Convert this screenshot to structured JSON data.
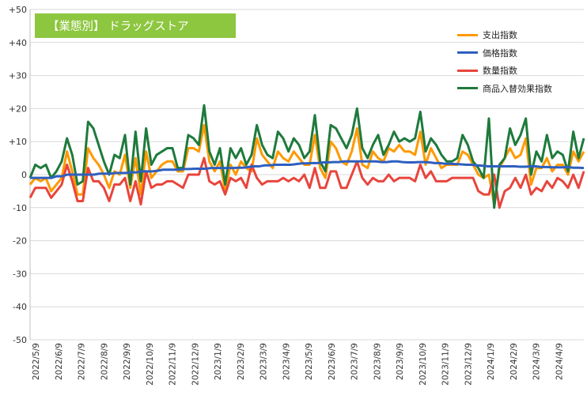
{
  "chart_data": {
    "type": "line",
    "title": "【業態別】 ドラッグストア",
    "ylim": [
      -50,
      50
    ],
    "yticks": [
      "+50",
      "+40",
      "+30",
      "+20",
      "+10",
      "0",
      "-10",
      "-20",
      "-30",
      "-40",
      "-50"
    ],
    "ytick_values": [
      50,
      40,
      30,
      20,
      10,
      0,
      -10,
      -20,
      -30,
      -40,
      -50
    ],
    "xtick_labels": [
      "2022/5/9",
      "2022/6/9",
      "2022/7/9",
      "2022/8/9",
      "2022/9/9",
      "2022/10/9",
      "2022/11/9",
      "2022/12/9",
      "2023/1/9",
      "2023/2/9",
      "2023/3/9",
      "2023/4/9",
      "2023/5/9",
      "2023/6/9",
      "2023/7/9",
      "2023/8/9",
      "2023/9/9",
      "2023/10/9",
      "2023/11/9",
      "2023/12/9",
      "2024/1/9",
      "2024/2/9",
      "2024/3/9",
      "2024/4/9"
    ],
    "grid": true,
    "legend_position": "top-right",
    "series": [
      {
        "name": "支出指数",
        "color": "#ff9900",
        "values": [
          -3,
          -1,
          -2,
          -1,
          -5,
          -3,
          -1,
          7,
          1,
          -6,
          -6,
          8,
          5,
          3,
          0,
          -4,
          1,
          0,
          6,
          -4,
          5,
          -6,
          7,
          -1,
          1,
          3,
          4,
          4,
          1,
          1,
          8,
          8,
          7,
          15,
          4,
          1,
          4,
          -5,
          3,
          0,
          4,
          2,
          1,
          11,
          6,
          4,
          2,
          7,
          5,
          4,
          7,
          5,
          3,
          3,
          12,
          2,
          -1,
          10,
          8,
          4,
          3,
          7,
          14,
          3,
          2,
          7,
          5,
          4,
          8,
          7,
          9,
          7,
          7,
          6,
          13,
          3,
          8,
          5,
          2,
          3,
          3,
          3,
          7,
          6,
          3,
          0,
          -1,
          0,
          -9,
          2,
          5,
          8,
          5,
          6,
          11,
          -3,
          2,
          2,
          5,
          1,
          3,
          3,
          0,
          7,
          4,
          7
        ]
      },
      {
        "name": "価格指数",
        "color": "#2e5fbf",
        "values": [
          -1,
          -1,
          -1,
          -1,
          -1,
          -0.5,
          -0.5,
          0,
          0,
          0,
          0,
          0,
          0,
          0.3,
          0.3,
          0.3,
          0.5,
          0.5,
          0.5,
          0.7,
          0.7,
          1,
          1,
          1,
          1.2,
          1.5,
          1.5,
          1.5,
          1.5,
          1.7,
          1.7,
          1.8,
          1.8,
          1.8,
          2,
          2,
          2,
          2,
          2,
          2.1,
          2.1,
          2.3,
          2.5,
          2.5,
          2.8,
          2.8,
          3,
          3,
          3,
          3,
          3.2,
          3.4,
          3.4,
          3.5,
          3.5,
          3.7,
          3.7,
          3.8,
          3.8,
          4,
          4,
          4,
          4,
          4,
          4,
          4,
          3.8,
          3.8,
          4,
          4,
          3.8,
          3.7,
          3.7,
          3.8,
          3.8,
          3.7,
          3.5,
          3.5,
          3.3,
          3.3,
          3.2,
          3.1,
          3,
          3,
          2.8,
          2.7,
          2.5,
          2.5,
          2.5,
          2.5,
          2.5,
          2.5,
          2.4,
          2.4,
          2.5,
          2.5,
          2.3,
          2.3,
          2.2,
          2.2,
          2.2,
          2.3,
          2.1,
          2.1,
          2
        ]
      },
      {
        "name": "数量指数",
        "color": "#e8453c",
        "values": [
          -7,
          -4,
          -4,
          -4,
          -7,
          -5,
          -3,
          3,
          -2,
          -8,
          -8,
          2,
          -2,
          -2,
          -4,
          -8,
          -3,
          -3,
          -1,
          -8,
          -2,
          -9,
          1,
          -4,
          -3,
          -3,
          -2,
          -2,
          -3,
          -4,
          0,
          0,
          0,
          5,
          -2,
          -3,
          -2,
          -6,
          -1,
          -2,
          -1,
          -4,
          3,
          -1,
          -3,
          -2,
          -2,
          -2,
          -1,
          -2,
          -1,
          -2,
          0,
          -4,
          2,
          -4,
          -4,
          1,
          1,
          -4,
          -4,
          0,
          4,
          -1,
          -3,
          -1,
          -2,
          -2,
          0,
          -2,
          -1,
          -1,
          -1,
          -2,
          3,
          -1,
          1,
          -2,
          -2,
          -2,
          -1,
          -1,
          -1,
          -1,
          -1,
          -5,
          -6,
          -6,
          0,
          -10,
          -5,
          -4,
          -1,
          -4,
          0,
          -6,
          -4,
          -5,
          -2,
          -4,
          -1,
          -2,
          -4,
          0,
          -4,
          1
        ]
      },
      {
        "name": "商品入替効果指数",
        "color": "#1e7a3c",
        "values": [
          -1,
          3,
          2,
          3,
          -1,
          1,
          4,
          11,
          6,
          -3,
          -2,
          16,
          14,
          9,
          4,
          0,
          6,
          5,
          12,
          -3,
          13,
          -2,
          14,
          3,
          6,
          7,
          8,
          8,
          2,
          2,
          12,
          11,
          9,
          21,
          7,
          3,
          8,
          -3,
          8,
          5,
          8,
          3,
          6,
          15,
          9,
          6,
          5,
          13,
          11,
          7,
          11,
          9,
          5,
          7,
          18,
          4,
          1,
          15,
          14,
          11,
          8,
          12,
          20,
          8,
          5,
          9,
          12,
          6,
          9,
          13,
          10,
          11,
          10,
          11,
          19,
          7,
          11,
          9,
          6,
          4,
          4,
          5,
          12,
          9,
          4,
          2,
          -1,
          17,
          -10,
          3,
          5,
          14,
          9,
          12,
          17,
          0,
          7,
          4,
          12,
          5,
          7,
          6,
          1,
          13,
          5,
          11
        ]
      }
    ]
  }
}
